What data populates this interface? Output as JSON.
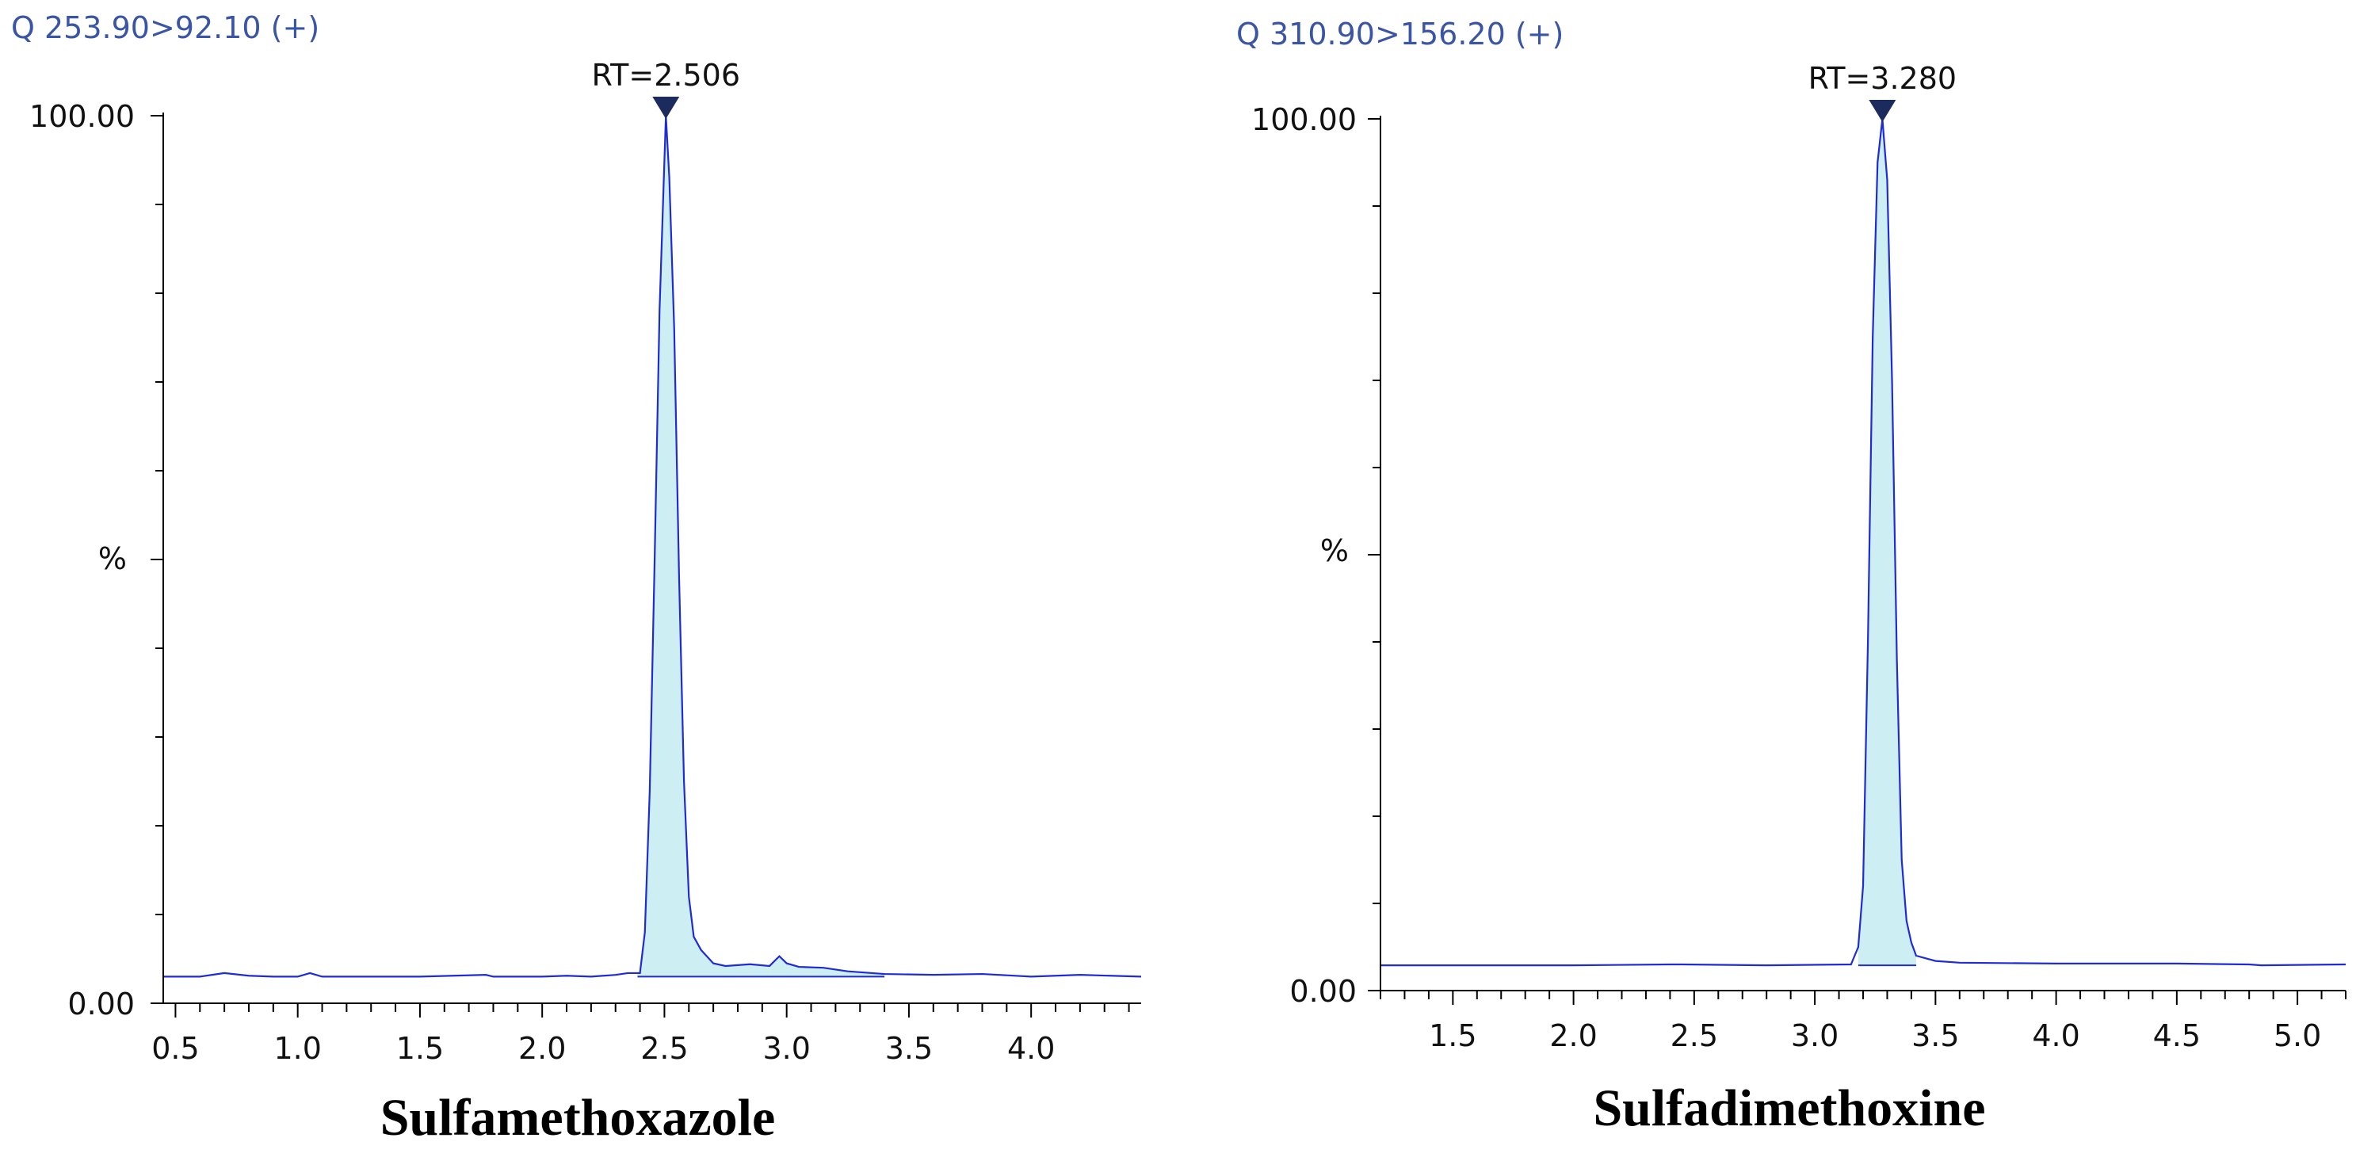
{
  "chart_data": [
    {
      "type": "line",
      "transition": "Q 253.90>92.10 (+)",
      "peak_label": "RT=2.506",
      "peak_rt": 2.506,
      "compound": "Sulfamethoxazole",
      "ylabel": "%",
      "ylim": [
        0,
        100
      ],
      "y_ticks": [
        "0.00",
        "100.00"
      ],
      "xlim": [
        0.45,
        4.45
      ],
      "x_major_ticks": [
        0.5,
        1.0,
        1.5,
        2.0,
        2.5,
        3.0,
        3.5,
        4.0
      ],
      "x_tick_labels": [
        "0.5",
        "1.0",
        "1.5",
        "2.0",
        "2.5",
        "3.0",
        "3.5",
        "4.0"
      ],
      "baseline_level": 3.0,
      "peak_area_range": [
        2.39,
        3.4
      ],
      "series": [
        {
          "x": [
            0.45,
            0.6,
            0.7,
            0.8,
            0.9,
            1.0,
            1.05,
            1.1,
            1.3,
            1.5,
            1.77,
            1.8,
            2.0,
            2.1,
            2.2,
            2.3,
            2.35,
            2.4,
            2.42,
            2.44,
            2.46,
            2.48,
            2.5,
            2.506,
            2.52,
            2.54,
            2.56,
            2.58,
            2.6,
            2.62,
            2.65,
            2.7,
            2.75,
            2.85,
            2.93,
            2.97,
            3.0,
            3.05,
            3.15,
            3.2,
            3.25,
            3.3,
            3.4,
            3.6,
            3.8,
            4.0,
            4.2,
            4.45
          ],
          "y": [
            3.0,
            3.0,
            3.4,
            3.1,
            3.0,
            3.0,
            3.4,
            3.0,
            3.0,
            3.0,
            3.2,
            3.0,
            3.0,
            3.1,
            3.0,
            3.2,
            3.4,
            3.4,
            8.0,
            24.0,
            50.0,
            78.0,
            95.0,
            100.0,
            93.0,
            76.0,
            48.0,
            25.0,
            12.0,
            7.5,
            6.0,
            4.5,
            4.2,
            4.4,
            4.2,
            5.3,
            4.5,
            4.1,
            4.0,
            3.8,
            3.6,
            3.5,
            3.3,
            3.2,
            3.3,
            3.0,
            3.2,
            3.0
          ]
        }
      ]
    },
    {
      "type": "line",
      "transition": "Q 310.90>156.20 (+)",
      "peak_label": "RT=3.280",
      "peak_rt": 3.28,
      "compound": "Sulfadimethoxine",
      "ylabel": "%",
      "ylim": [
        0,
        100
      ],
      "y_ticks": [
        "0.00",
        "100.00"
      ],
      "xlim": [
        1.2,
        5.2
      ],
      "x_major_ticks": [
        1.5,
        2.0,
        2.5,
        3.0,
        3.5,
        4.0,
        4.5,
        5.0
      ],
      "x_tick_labels": [
        "1.5",
        "2.0",
        "2.5",
        "3.0",
        "3.5",
        "4.0",
        "4.5",
        "5.0"
      ],
      "baseline_level": 2.9,
      "peak_area_range": [
        3.18,
        3.42
      ],
      "series": [
        {
          "x": [
            1.2,
            1.6,
            2.0,
            2.4,
            2.45,
            2.8,
            3.15,
            3.18,
            3.2,
            3.22,
            3.24,
            3.26,
            3.28,
            3.3,
            3.32,
            3.34,
            3.36,
            3.38,
            3.4,
            3.42,
            3.5,
            3.6,
            4.0,
            4.5,
            4.8,
            4.85,
            5.2
          ],
          "y": [
            2.9,
            2.9,
            2.9,
            3.0,
            3.0,
            2.9,
            3.0,
            5.0,
            12.0,
            40.0,
            75.0,
            95.0,
            100.0,
            93.0,
            70.0,
            38.0,
            15.0,
            8.0,
            5.5,
            4.0,
            3.4,
            3.2,
            3.1,
            3.1,
            3.0,
            2.9,
            3.0
          ]
        }
      ]
    }
  ]
}
